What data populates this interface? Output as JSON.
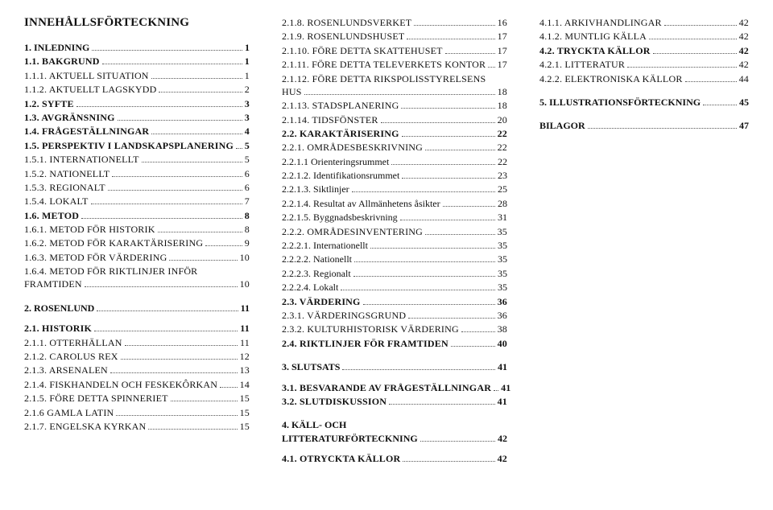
{
  "title": "INNEHÅLLSFÖRTECKNING",
  "columns": [
    {
      "title_above": true,
      "entries": [
        {
          "label": "1. INLEDNING",
          "page": "1",
          "cls": "bold"
        },
        {
          "label": "1.1. BAKGRUND",
          "page": "1",
          "cls": "sc bold"
        },
        {
          "label": "1.1.1. AKTUELL SITUATION",
          "page": "1",
          "cls": "sc"
        },
        {
          "label": "1.1.2. AKTUELLT LAGSKYDD",
          "page": "2",
          "cls": "sc"
        },
        {
          "label": "1.2. SYFTE",
          "page": "3",
          "cls": "sc bold"
        },
        {
          "label": "1.3. AVGRÄNSNING",
          "page": "3",
          "cls": "sc bold"
        },
        {
          "label": "1.4. FRÅGESTÄLLNINGAR",
          "page": "4",
          "cls": "sc bold"
        },
        {
          "label": "1.5. PERSPEKTIV I LANDSKAPSPLANERING",
          "page": "5",
          "cls": "sc bold"
        },
        {
          "label": "1.5.1. INTERNATIONELLT",
          "page": "5",
          "cls": "sc"
        },
        {
          "label": "1.5.2. NATIONELLT",
          "page": "6",
          "cls": "sc"
        },
        {
          "label": "1.5.3. REGIONALT",
          "page": "6",
          "cls": "sc"
        },
        {
          "label": "1.5.4. LOKALT",
          "page": "7",
          "cls": "sc"
        },
        {
          "label": "1.6. METOD",
          "page": "8",
          "cls": "sc bold"
        },
        {
          "label": "1.6.1. METOD FÖR HISTORIK",
          "page": "8",
          "cls": "sc"
        },
        {
          "label": "1.6.2. METOD FÖR KARAKTÄRISERING",
          "page": "9",
          "cls": "sc"
        },
        {
          "label": "1.6.3. METOD FÖR VÄRDERING",
          "page": "10",
          "cls": "sc"
        },
        {
          "label": "1.6.4. METOD FÖR RIKTLINJER INFÖR FRAMTIDEN",
          "page": "10",
          "cls": "sc",
          "wrap": true
        },
        {
          "gap": "md"
        },
        {
          "label": "2. ROSENLUND",
          "page": "11",
          "cls": "bold"
        },
        {
          "gap": "sm"
        },
        {
          "label": "2.1. HISTORIK",
          "page": "11",
          "cls": "sc bold"
        },
        {
          "label": "2.1.1. OTTERHÄLLAN",
          "page": "11",
          "cls": "sc"
        },
        {
          "label": "2.1.2. CAROLUS REX",
          "page": "12",
          "cls": "sc"
        },
        {
          "label": "2.1.3. ARSENALEN",
          "page": "13",
          "cls": "sc"
        },
        {
          "label": "2.1.4. FISKHANDELN OCH FESKEKÔRKAN",
          "page": "14",
          "cls": "sc"
        },
        {
          "label": "2.1.5. FÖRE DETTA SPINNERIET",
          "page": "15",
          "cls": "sc"
        },
        {
          "label": "2.1.6 GAMLA LATIN",
          "page": "15",
          "cls": "sc"
        },
        {
          "label": "2.1.7. ENGELSKA KYRKAN",
          "page": "15",
          "cls": "sc"
        }
      ]
    },
    {
      "entries": [
        {
          "label": "2.1.8. ROSENLUNDSVERKET",
          "page": "16",
          "cls": "sc"
        },
        {
          "label": "2.1.9. ROSENLUNDSHUSET",
          "page": "17",
          "cls": "sc"
        },
        {
          "label": "2.1.10. FÖRE DETTA SKATTEHUSET",
          "page": "17",
          "cls": "sc"
        },
        {
          "label": "2.1.11. FÖRE DETTA TELEVERKETS KONTOR",
          "page": "17",
          "cls": "sc"
        },
        {
          "label": "2.1.12. FÖRE DETTA RIKSPOLISSTYRELSENS HUS",
          "page": "18",
          "cls": "sc",
          "wrap": true
        },
        {
          "label": "2.1.13. STADSPLANERING",
          "page": "18",
          "cls": "sc"
        },
        {
          "label": "2.1.14. TIDSFÖNSTER",
          "page": "20",
          "cls": "sc"
        },
        {
          "label": "2.2. KARAKTÄRISERING",
          "page": "22",
          "cls": "sc bold"
        },
        {
          "label": "2.2.1. OMRÅDESBESKRIVNING",
          "page": "22",
          "cls": "sc"
        },
        {
          "label": "2.2.1.1 Orienteringsrummet",
          "page": "22",
          "cls": ""
        },
        {
          "label": "2.2.1.2. Identifikationsrummet",
          "page": "23",
          "cls": ""
        },
        {
          "label": "2.2.1.3. Siktlinjer",
          "page": "25",
          "cls": ""
        },
        {
          "label": "2.2.1.4. Resultat av Allmänhetens åsikter",
          "page": "28",
          "cls": ""
        },
        {
          "label": "2.2.1.5. Byggnadsbeskrivning",
          "page": "31",
          "cls": ""
        },
        {
          "label": "2.2.2. OMRÅDESINVENTERING",
          "page": "35",
          "cls": "sc"
        },
        {
          "label": "2.2.2.1. Internationellt",
          "page": "35",
          "cls": ""
        },
        {
          "label": "2.2.2.2. Nationellt",
          "page": "35",
          "cls": ""
        },
        {
          "label": "2.2.2.3. Regionalt",
          "page": "35",
          "cls": ""
        },
        {
          "label": "2.2.2.4. Lokalt",
          "page": "35",
          "cls": ""
        },
        {
          "label": "2.3. VÄRDERING",
          "page": "36",
          "cls": "sc bold"
        },
        {
          "label": "2.3.1. VÄRDERINGSGRUND",
          "page": "36",
          "cls": "sc"
        },
        {
          "label": "2.3.2. KULTURHISTORISK VÄRDERING",
          "page": "38",
          "cls": "sc"
        },
        {
          "label": "2.4. RIKTLINJER FÖR FRAMTIDEN",
          "page": "40",
          "cls": "sc bold"
        },
        {
          "gap": "md"
        },
        {
          "label": "3. SLUTSATS",
          "page": "41",
          "cls": "bold"
        },
        {
          "gap": "sm"
        },
        {
          "label": "3.1. BESVARANDE AV FRÅGESTÄLLNINGAR",
          "page": "41",
          "cls": "sc bold"
        },
        {
          "label": "3.2. SLUTDISKUSSION",
          "page": "41",
          "cls": "sc bold"
        },
        {
          "gap": "md"
        },
        {
          "label": "4. KÄLL- OCH LITTERATURFÖRTECKNING",
          "page": "42",
          "cls": "bold",
          "wrap": true
        },
        {
          "gap": "sm"
        },
        {
          "label": "4.1. OTRYCKTA KÄLLOR",
          "page": "42",
          "cls": "sc bold"
        }
      ]
    },
    {
      "entries": [
        {
          "label": "4.1.1. ARKIVHANDLINGAR",
          "page": "42",
          "cls": "sc"
        },
        {
          "label": "4.1.2. MUNTLIG KÄLLA",
          "page": "42",
          "cls": "sc"
        },
        {
          "label": "4.2. TRYCKTA KÄLLOR",
          "page": "42",
          "cls": "sc bold"
        },
        {
          "label": "4.2.1. LITTERATUR",
          "page": "42",
          "cls": "sc"
        },
        {
          "label": "4.2.2. ELEKTRONISKA KÄLLOR",
          "page": "44",
          "cls": "sc"
        },
        {
          "gap": "md"
        },
        {
          "label": "5. ILLUSTRATIONSFÖRTECKNING",
          "page": "45",
          "cls": "bold"
        },
        {
          "gap": "md"
        },
        {
          "label": "BILAGOR",
          "page": "47",
          "cls": "bold"
        }
      ]
    }
  ]
}
